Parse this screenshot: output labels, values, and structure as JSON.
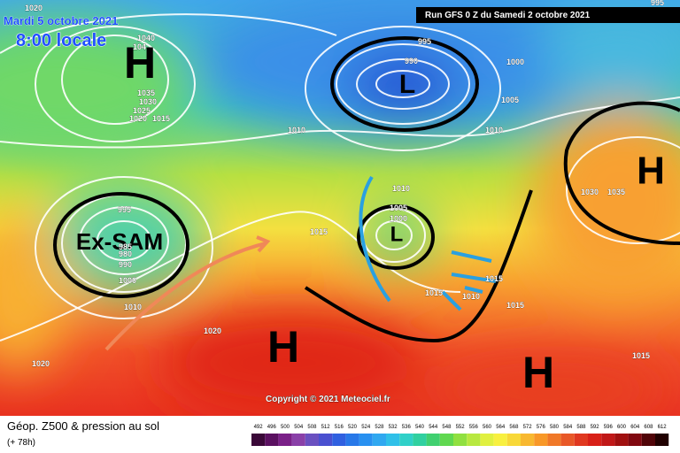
{
  "header": {
    "date": "Mardi 5 octobre 2021",
    "time": "8:00 locale",
    "run": "Run GFS 0 Z du Samedi 2 octobre 2021"
  },
  "systems": [
    {
      "label": "H"
    },
    {
      "label": "L"
    },
    {
      "label": "Ex-SAM"
    },
    {
      "label": "L"
    },
    {
      "label": "H"
    },
    {
      "label": "H"
    },
    {
      "label": "H"
    }
  ],
  "isobar_labels": [
    1020,
    1040,
    104,
    1035,
    1030,
    1025,
    1020,
    1015,
    1010,
    995,
    990,
    1000,
    1005,
    1010,
    1010,
    1005,
    1000,
    995,
    985,
    980,
    990,
    1000,
    1010,
    1015,
    1020,
    1020,
    1015,
    1010,
    1015,
    1030,
    1035,
    1015,
    1015,
    995
  ],
  "copyright": "Copyright © 2021 Meteociel.fr",
  "footer": {
    "title": "Géop. Z500 & pression au sol",
    "lead": "(+ 78h)"
  },
  "scale": {
    "labels": [
      492,
      496,
      500,
      504,
      508,
      512,
      516,
      520,
      524,
      528,
      532,
      536,
      540,
      544,
      548,
      552,
      556,
      560,
      564,
      568,
      572,
      576,
      580,
      584,
      588,
      592,
      596,
      600,
      604,
      608,
      612
    ],
    "colors": [
      "#3a0838",
      "#5a1060",
      "#7a2088",
      "#8a40a8",
      "#6a50c0",
      "#4a50d0",
      "#3060e0",
      "#2878e8",
      "#2890f0",
      "#30a8f0",
      "#30c0e8",
      "#30d0c8",
      "#30d0a0",
      "#40d070",
      "#60d850",
      "#90e040",
      "#b8e840",
      "#e0f040",
      "#f8f040",
      "#f8d838",
      "#f8b830",
      "#f89828",
      "#f07828",
      "#e85828",
      "#e03820",
      "#d82018",
      "#c01818",
      "#a01010",
      "#800810",
      "#500408",
      "#200000"
    ]
  }
}
